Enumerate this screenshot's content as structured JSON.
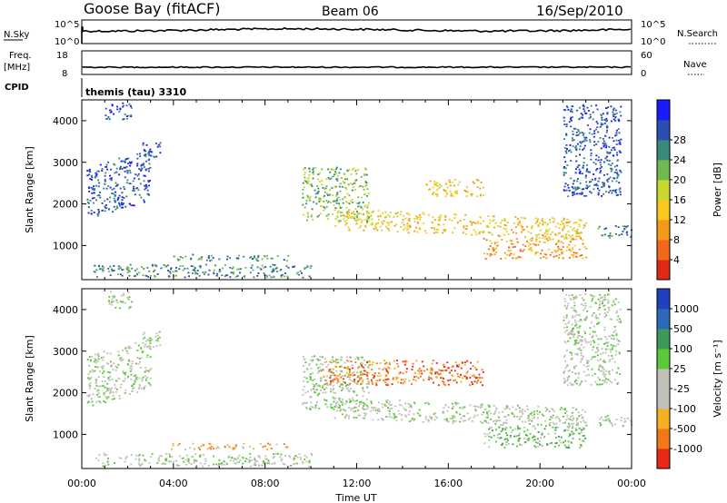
{
  "header": {
    "station": "Goose Bay (fitACF)",
    "beam": "Beam 06",
    "date": "16/Sep/2010"
  },
  "nsky_panel": {
    "left_label": "N.Sky",
    "right_label": "N.Search",
    "left_ticks": [
      "10^5",
      "10^0"
    ],
    "right_ticks": [
      "10^5",
      "10^0"
    ]
  },
  "freq_panel": {
    "left_label_line1": "Freq.",
    "left_label_line2": "[MHz]",
    "right_label": "Nave",
    "left_ticks": [
      "18",
      "8"
    ],
    "right_ticks": [
      "60",
      "0"
    ]
  },
  "cpid": {
    "label": "CPID",
    "value": "themis (tau) 3310"
  },
  "chart_data": [
    {
      "type": "heatmap",
      "name_shown": "Power",
      "xlabel": "",
      "ylabel": "Slant Range [km]",
      "x_ticks": [
        "00:00",
        "04:00",
        "08:00",
        "12:00",
        "16:00",
        "20:00",
        "00:00"
      ],
      "xlim_hours": [
        0,
        24
      ],
      "ylim_km": [
        180,
        4500
      ],
      "y_ticks": [
        1000,
        2000,
        3000,
        4000
      ],
      "colorbar_label": "Power [dB]",
      "colorbar_ticks": [
        "4",
        "8",
        "12",
        "16",
        "20",
        "24",
        "28"
      ],
      "colorbar_colors": [
        "#1a1aff",
        "#2a4fb0",
        "#3a8a7a",
        "#70b850",
        "#c8d832",
        "#f7c81e",
        "#f39a1a",
        "#f06818",
        "#e02a18"
      ],
      "scatter_regions": [
        {
          "t0": 0.2,
          "t1": 3.0,
          "r0": 1650,
          "r1": 2900,
          "tilt": 450,
          "level": 1
        },
        {
          "t0": 1.0,
          "t1": 2.2,
          "r0": 4050,
          "r1": 4450,
          "level": 1
        },
        {
          "t0": 2.6,
          "t1": 3.4,
          "r0": 3100,
          "r1": 3500,
          "level": 1
        },
        {
          "t0": 3.8,
          "t1": 9.0,
          "r0": 650,
          "r1": 800,
          "level": 2
        },
        {
          "t0": 0.5,
          "t1": 10.0,
          "r0": 250,
          "r1": 560,
          "level": 2
        },
        {
          "t0": 9.6,
          "t1": 12.5,
          "r0": 1600,
          "r1": 2900,
          "level": 3
        },
        {
          "t0": 11.0,
          "t1": 22.0,
          "r0": 1400,
          "r1": 1900,
          "tilt": -250,
          "level": 5
        },
        {
          "t0": 15.0,
          "t1": 17.5,
          "r0": 2200,
          "r1": 2600,
          "level": 5
        },
        {
          "t0": 17.5,
          "t1": 22.0,
          "r0": 700,
          "r1": 1200,
          "level": 6
        },
        {
          "t0": 21.0,
          "t1": 23.5,
          "r0": 2200,
          "r1": 4400,
          "level": 1
        },
        {
          "t0": 22.5,
          "t1": 24.0,
          "r0": 1200,
          "r1": 1500,
          "level": 2
        }
      ]
    },
    {
      "type": "heatmap",
      "name_shown": "Velocity",
      "xlabel": "Time UT",
      "ylabel": "Slant Range [km]",
      "x_ticks": [
        "00:00",
        "04:00",
        "08:00",
        "12:00",
        "16:00",
        "20:00",
        "00:00"
      ],
      "xlim_hours": [
        0,
        24
      ],
      "ylim_km": [
        180,
        4500
      ],
      "y_ticks": [
        1000,
        2000,
        3000,
        4000
      ],
      "colorbar_label": "Velocity [m s⁻¹]",
      "colorbar_ticks": [
        "1000",
        "500",
        "100",
        "25",
        "-25",
        "-100",
        "-500",
        "-1000"
      ],
      "colorbar_colors": [
        "#2040c0",
        "#2c6ab8",
        "#3f9a5a",
        "#5ac838",
        "#c0c0b8",
        "#c0c0b8",
        "#f5b020",
        "#f07818",
        "#e82818"
      ],
      "scatter_regions": [
        {
          "t0": 0.2,
          "t1": 3.0,
          "r0": 1650,
          "r1": 2900,
          "tilt": 450,
          "level": 4
        },
        {
          "t0": 1.0,
          "t1": 2.2,
          "r0": 4050,
          "r1": 4450,
          "level": 4
        },
        {
          "t0": 2.6,
          "t1": 3.4,
          "r0": 3100,
          "r1": 3500,
          "level": 4
        },
        {
          "t0": 3.8,
          "t1": 9.0,
          "r0": 650,
          "r1": 800,
          "level": 6
        },
        {
          "t0": 0.5,
          "t1": 10.0,
          "r0": 250,
          "r1": 560,
          "level": 4
        },
        {
          "t0": 9.6,
          "t1": 12.5,
          "r0": 1600,
          "r1": 2900,
          "level": 4
        },
        {
          "t0": 11.0,
          "t1": 22.0,
          "r0": 1400,
          "r1": 1900,
          "tilt": -250,
          "level": 4
        },
        {
          "t0": 10.5,
          "t1": 17.5,
          "r0": 2200,
          "r1": 2800,
          "level": 7
        },
        {
          "t0": 17.5,
          "t1": 22.0,
          "r0": 700,
          "r1": 1200,
          "level": 3
        },
        {
          "t0": 21.0,
          "t1": 23.5,
          "r0": 2200,
          "r1": 4400,
          "level": 4
        },
        {
          "t0": 22.5,
          "t1": 24.0,
          "r0": 1200,
          "r1": 1500,
          "level": 4
        }
      ]
    }
  ]
}
